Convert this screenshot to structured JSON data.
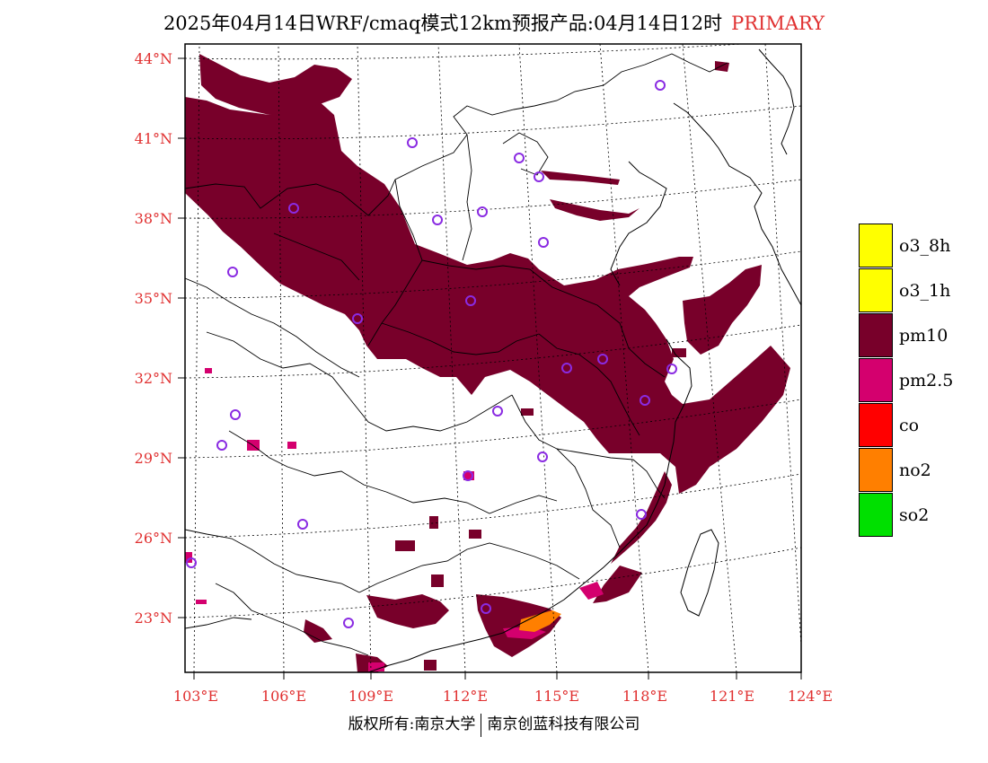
{
  "title": {
    "main": "2025年04月14日WRF/cmaq模式12km预报产品:04月14日12时",
    "tag": "PRIMARY"
  },
  "axes": {
    "lat_labels": [
      "44°N",
      "41°N",
      "38°N",
      "35°N",
      "32°N",
      "29°N",
      "26°N",
      "23°N"
    ],
    "lon_labels": [
      "103°E",
      "106°E",
      "109°E",
      "112°E",
      "115°E",
      "118°E",
      "121°E",
      "124°E"
    ]
  },
  "legend": {
    "items": [
      {
        "label": "o3_8h",
        "color": "#ffff00"
      },
      {
        "label": "o3_1h",
        "color": "#ffff00"
      },
      {
        "label": "pm10",
        "color": "#78002a"
      },
      {
        "label": "pm2.5",
        "color": "#d4006e"
      },
      {
        "label": "co",
        "color": "#ff0000"
      },
      {
        "label": "no2",
        "color": "#ff7f00"
      },
      {
        "label": "so2",
        "color": "#00e000"
      }
    ]
  },
  "copyright": {
    "left": "版权所有:南京大学",
    "right": "南京创蓝科技有限公司"
  },
  "colors": {
    "pm10": "#78002a",
    "pm25": "#d4006e",
    "no2": "#ff7f00",
    "station": "#8a2be2",
    "axis_label": "#e03030"
  }
}
